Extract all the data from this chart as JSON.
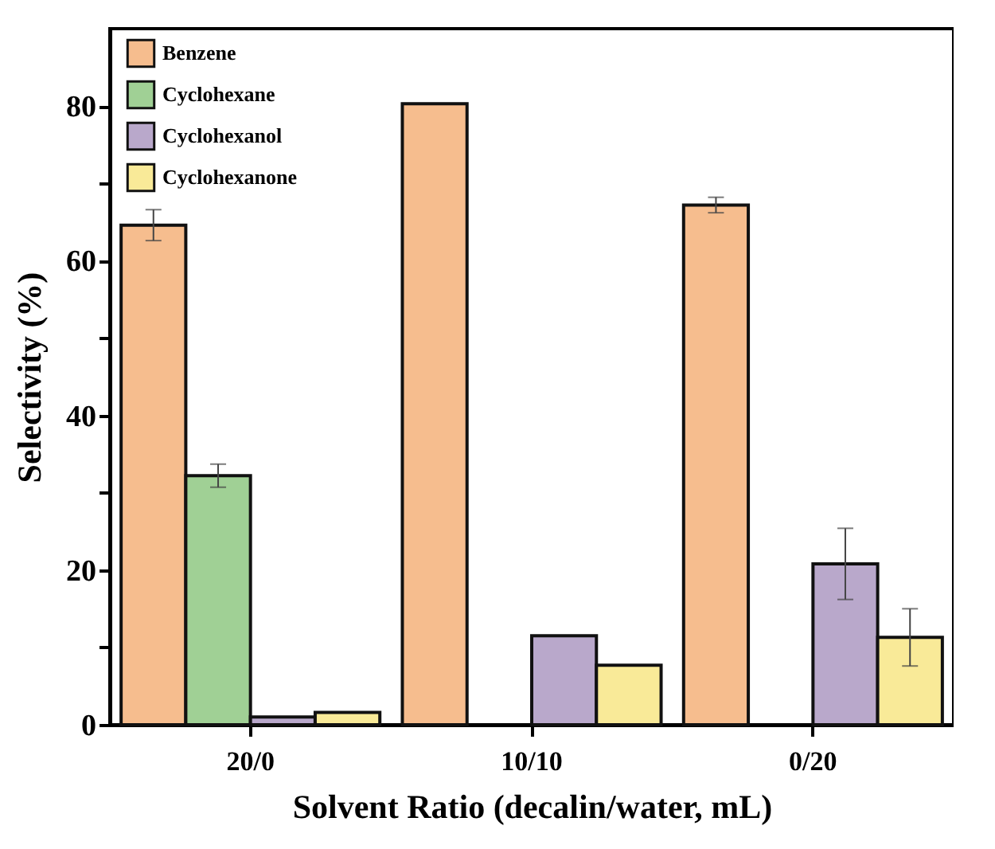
{
  "chart_data": {
    "type": "bar",
    "xlabel": "Solvent Ratio (decalin/water, mL)",
    "ylabel": "Selectivity (%)",
    "categories": [
      "20/0",
      "10/10",
      "0/20"
    ],
    "series": [
      {
        "name": "Benzene",
        "color": "#f6bd8e",
        "values": [
          64.6,
          80.3,
          67.2
        ],
        "errors": [
          2.0,
          null,
          1.0
        ]
      },
      {
        "name": "Cyclohexane",
        "color": "#a0d095",
        "values": [
          32.2,
          null,
          null
        ],
        "errors": [
          1.5,
          null,
          null
        ]
      },
      {
        "name": "Cyclohexanol",
        "color": "#b9a8cb",
        "values": [
          1.0,
          11.5,
          20.8
        ],
        "errors": [
          null,
          null,
          4.6
        ]
      },
      {
        "name": "Cyclohexanone",
        "color": "#f9ea98",
        "values": [
          1.6,
          7.7,
          11.3
        ],
        "errors": [
          null,
          null,
          3.7
        ]
      }
    ],
    "ylim": [
      0,
      90
    ],
    "yticks": [
      0,
      {
        "value": 10,
        "label": null
      },
      20,
      {
        "value": 30,
        "label": null
      },
      40,
      {
        "value": 50,
        "label": null
      },
      60,
      {
        "value": 70,
        "label": null
      },
      80
    ],
    "legend": "top left",
    "grid": false
  }
}
